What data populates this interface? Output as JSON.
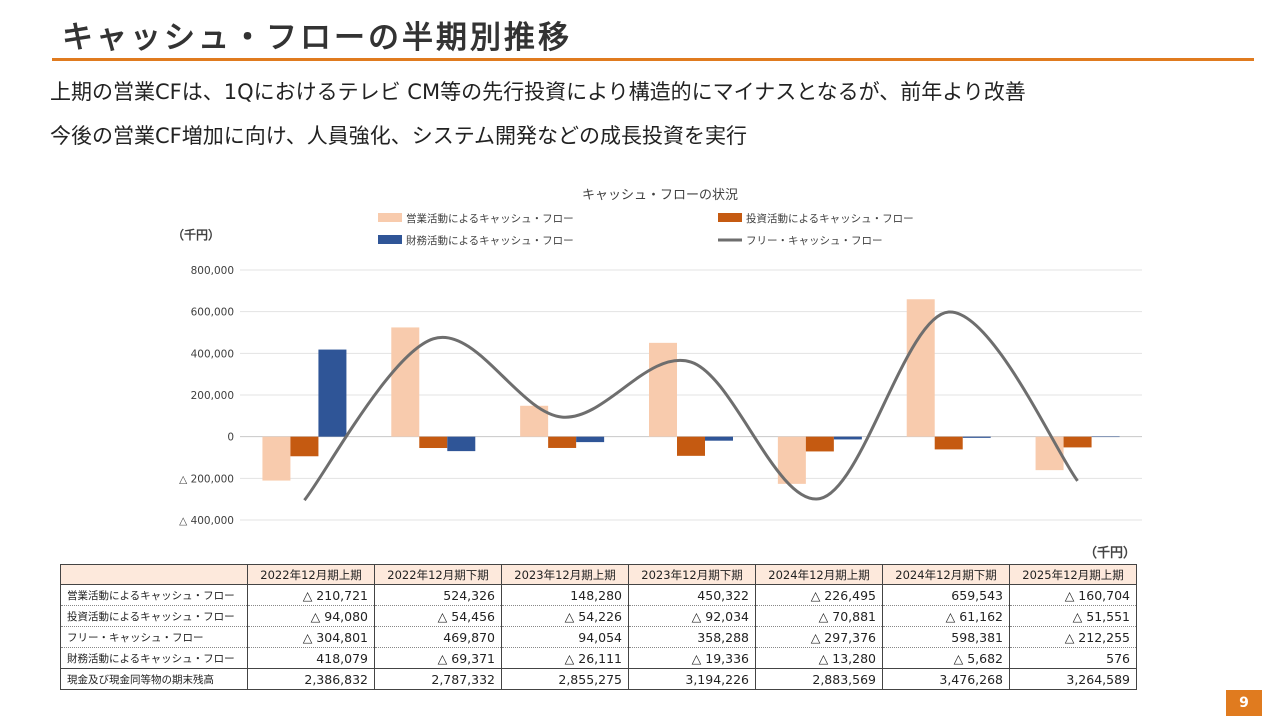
{
  "header": {
    "title": "キャッシュ・フローの半期別推移"
  },
  "bullets": [
    "上期の営業CFは、1Qにおけるテレビ CM等の先行投資により構造的にマイナスとなるが、前年より改善",
    "今後の営業CF増加に向け、人員強化、システム開発などの成長投資を実行"
  ],
  "colors": {
    "accent": "#e07b1f",
    "operating": "#f8cbad",
    "investing": "#c55a11",
    "financing": "#2f5597",
    "free": "#6e6e6e"
  },
  "chart_data": {
    "type": "bar",
    "title": "キャッシュ・フローの状況",
    "unit": "（千円）",
    "categories": [
      "2022年12月期上期",
      "2022年12月期下期",
      "2023年12月期上期",
      "2023年12月期下期",
      "2024年12月期上期",
      "2024年12月期下期",
      "2025年12月期上期"
    ],
    "ylim": [
      -400000,
      800000
    ],
    "yticks": [
      800000,
      600000,
      400000,
      200000,
      0,
      -200000,
      -400000
    ],
    "ytick_labels": [
      "800,000",
      "600,000",
      "400,000",
      "200,000",
      "0",
      "△ 200,000",
      "△ 400,000"
    ],
    "series": [
      {
        "name": "営業活動によるキャッシュ・フロー",
        "kind": "bar",
        "color": "#f8cbad",
        "values": [
          -210721,
          524326,
          148280,
          450322,
          -226495,
          659543,
          -160704
        ]
      },
      {
        "name": "投資活動によるキャッシュ・フロー",
        "kind": "bar",
        "color": "#c55a11",
        "values": [
          -94080,
          -54456,
          -54226,
          -92034,
          -70881,
          -61162,
          -51551
        ]
      },
      {
        "name": "財務活動によるキャッシュ・フロー",
        "kind": "bar",
        "color": "#2f5597",
        "values": [
          418079,
          -69371,
          -26111,
          -19336,
          -13280,
          -5682,
          576
        ]
      },
      {
        "name": "フリー・キャッシュ・フロー",
        "kind": "line",
        "color": "#6e6e6e",
        "values": [
          -304801,
          469870,
          94054,
          358288,
          -297376,
          598381,
          -212255
        ]
      }
    ]
  },
  "table": {
    "unit": "（千円）",
    "columns": [
      "2022年12月期上期",
      "2022年12月期下期",
      "2023年12月期上期",
      "2023年12月期下期",
      "2024年12月期上期",
      "2024年12月期下期",
      "2025年12月期上期"
    ],
    "rows": [
      {
        "label": "営業活動によるキャッシュ・フロー",
        "cells": [
          "△ 210,721",
          "524,326",
          "148,280",
          "450,322",
          "△ 226,495",
          "659,543",
          "△ 160,704"
        ]
      },
      {
        "label": "投資活動によるキャッシュ・フロー",
        "cells": [
          "△ 94,080",
          "△ 54,456",
          "△ 54,226",
          "△ 92,034",
          "△ 70,881",
          "△ 61,162",
          "△ 51,551"
        ]
      },
      {
        "label": "フリー・キャッシュ・フロー",
        "cells": [
          "△ 304,801",
          "469,870",
          "94,054",
          "358,288",
          "△ 297,376",
          "598,381",
          "△ 212,255"
        ]
      },
      {
        "label": "財務活動によるキャッシュ・フロー",
        "cells": [
          "418,079",
          "△ 69,371",
          "△ 26,111",
          "△ 19,336",
          "△ 13,280",
          "△ 5,682",
          "576"
        ]
      },
      {
        "label": "現金及び現金同等物の期末残高",
        "cells": [
          "2,386,832",
          "2,787,332",
          "2,855,275",
          "3,194,226",
          "2,883,569",
          "3,476,268",
          "3,264,589"
        ]
      }
    ]
  },
  "page_number": "9"
}
